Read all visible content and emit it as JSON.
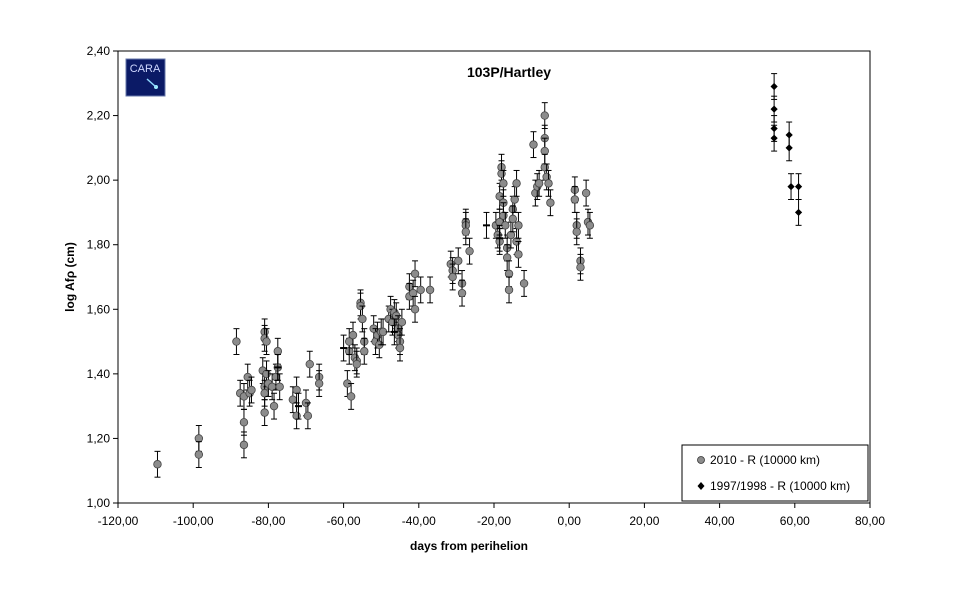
{
  "chart_data": {
    "type": "scatter",
    "title": "103P/Hartley",
    "xlabel": "days from perihelion",
    "ylabel": "log Afρ  (cm)",
    "xlim": [
      -120,
      80
    ],
    "ylim": [
      1.0,
      2.4
    ],
    "x_ticks": [
      "-120,00",
      "-100,00",
      "-80,00",
      "-60,00",
      "-40,00",
      "-20,00",
      "0,00",
      "20,00",
      "40,00",
      "60,00",
      "80,00"
    ],
    "y_ticks": [
      "1,00",
      "1,20",
      "1,40",
      "1,60",
      "1,80",
      "2,00",
      "2,20",
      "2,40"
    ],
    "grid": false,
    "legend_position": "bottom-right",
    "logo_text": "CARA",
    "series": [
      {
        "name": "2010 - R (10000 km)",
        "marker": "circle",
        "color": "#8c8c8c",
        "error": 0.04,
        "points": [
          [
            -109.5,
            1.12
          ],
          [
            -98.5,
            1.2
          ],
          [
            -98.5,
            1.15
          ],
          [
            -88.5,
            1.5
          ],
          [
            -87.5,
            1.34
          ],
          [
            -86.5,
            1.33
          ],
          [
            -86.5,
            1.25
          ],
          [
            -86.5,
            1.18
          ],
          [
            -85.5,
            1.39
          ],
          [
            -85,
            1.34
          ],
          [
            -84.5,
            1.35
          ],
          [
            -81.5,
            1.41
          ],
          [
            -81,
            1.53
          ],
          [
            -81,
            1.51
          ],
          [
            -80.5,
            1.5
          ],
          [
            -81,
            1.36
          ],
          [
            -81,
            1.34
          ],
          [
            -81,
            1.28
          ],
          [
            -80.5,
            1.4
          ],
          [
            -80,
            1.37
          ],
          [
            -79,
            1.36
          ],
          [
            -78.5,
            1.3
          ],
          [
            -78,
            1.39
          ],
          [
            -77.5,
            1.47
          ],
          [
            -77,
            1.36
          ],
          [
            -77.5,
            1.42
          ],
          [
            -73.5,
            1.32
          ],
          [
            -72.5,
            1.35
          ],
          [
            -72.5,
            1.27
          ],
          [
            -70,
            1.31
          ],
          [
            -69.5,
            1.27
          ],
          [
            -69,
            1.43
          ],
          [
            -66.5,
            1.39
          ],
          [
            -66.5,
            1.37
          ],
          [
            -59,
            1.37
          ],
          [
            -58.5,
            1.47
          ],
          [
            -58.5,
            1.5
          ],
          [
            -58,
            1.33
          ],
          [
            -57.5,
            1.52
          ],
          [
            -57,
            1.45
          ],
          [
            -56.5,
            1.44
          ],
          [
            -56.5,
            1.43
          ],
          [
            -55.5,
            1.62
          ],
          [
            -55.5,
            1.61
          ],
          [
            -55,
            1.57
          ],
          [
            -54.5,
            1.5
          ],
          [
            -54.5,
            1.47
          ],
          [
            -52,
            1.54
          ],
          [
            -51.5,
            1.5
          ],
          [
            -51,
            1.52
          ],
          [
            -50.5,
            1.49
          ],
          [
            -50,
            1.53
          ],
          [
            -49.5,
            1.53
          ],
          [
            -48,
            1.57
          ],
          [
            -47.5,
            1.6
          ],
          [
            -47,
            1.56
          ],
          [
            -46.5,
            1.59
          ],
          [
            -46,
            1.58
          ],
          [
            -45.5,
            1.54
          ],
          [
            -45.5,
            1.52
          ],
          [
            -45,
            1.5
          ],
          [
            -45,
            1.48
          ],
          [
            -44.5,
            1.56
          ],
          [
            -42.5,
            1.67
          ],
          [
            -42.5,
            1.64
          ],
          [
            -41.5,
            1.65
          ],
          [
            -41,
            1.71
          ],
          [
            -41,
            1.6
          ],
          [
            -39.5,
            1.66
          ],
          [
            -37,
            1.66
          ],
          [
            -31.5,
            1.74
          ],
          [
            -31,
            1.72
          ],
          [
            -31,
            1.7
          ],
          [
            -29.5,
            1.75
          ],
          [
            -28.5,
            1.68
          ],
          [
            -28.5,
            1.65
          ],
          [
            -27.5,
            1.87
          ],
          [
            -27.5,
            1.86
          ],
          [
            -27.5,
            1.84
          ],
          [
            -26.5,
            1.78
          ],
          [
            -19.5,
            1.86
          ],
          [
            -19,
            1.83
          ],
          [
            -18.5,
            1.95
          ],
          [
            -18.5,
            1.87
          ],
          [
            -18.5,
            1.81
          ],
          [
            -18,
            2.04
          ],
          [
            -18,
            2.02
          ],
          [
            -17.5,
            1.99
          ],
          [
            -17.5,
            1.93
          ],
          [
            -17.5,
            1.89
          ],
          [
            -17,
            1.86
          ],
          [
            -16.5,
            1.79
          ],
          [
            -16.5,
            1.76
          ],
          [
            -16,
            1.71
          ],
          [
            -16,
            1.66
          ],
          [
            -15.5,
            1.83
          ],
          [
            -15,
            1.91
          ],
          [
            -15,
            1.88
          ],
          [
            -14.5,
            1.94
          ],
          [
            -14,
            1.99
          ],
          [
            -14,
            1.81
          ],
          [
            -13.5,
            1.77
          ],
          [
            -13.5,
            1.86
          ],
          [
            -12,
            1.68
          ],
          [
            -9.5,
            2.11
          ],
          [
            -9,
            1.96
          ],
          [
            -8.5,
            1.98
          ],
          [
            -8,
            1.99
          ],
          [
            -6.5,
            2.2
          ],
          [
            -6.5,
            2.13
          ],
          [
            -6.5,
            2.09
          ],
          [
            -6.5,
            2.04
          ],
          [
            -6,
            2.01
          ],
          [
            -5.5,
            1.99
          ],
          [
            -5,
            1.93
          ],
          [
            1.5,
            1.97
          ],
          [
            1.5,
            1.94
          ],
          [
            2,
            1.86
          ],
          [
            2,
            1.84
          ],
          [
            3,
            1.75
          ],
          [
            3,
            1.73
          ],
          [
            4.5,
            1.96
          ],
          [
            5,
            1.87
          ],
          [
            5.5,
            1.86
          ]
        ]
      },
      {
        "name": "1997/1998 - R (10000 km)",
        "marker": "diamond",
        "color": "#000000",
        "error": 0.04,
        "points": [
          [
            54.5,
            2.29
          ],
          [
            54.5,
            2.22
          ],
          [
            54.5,
            2.16
          ],
          [
            54.5,
            2.13
          ],
          [
            58.5,
            2.14
          ],
          [
            58.5,
            2.1
          ],
          [
            59,
            1.98
          ],
          [
            61,
            1.98
          ],
          [
            61,
            1.9
          ]
        ]
      },
      {
        "name": "",
        "marker": "dash",
        "color": "#000000",
        "error": 0.04,
        "points": [
          [
            -77.5,
            1.42
          ],
          [
            -72,
            1.3
          ],
          [
            -60,
            1.48
          ],
          [
            -46.5,
            1.53
          ],
          [
            -22,
            1.86
          ],
          [
            -18.5,
            1.82
          ]
        ]
      }
    ]
  }
}
